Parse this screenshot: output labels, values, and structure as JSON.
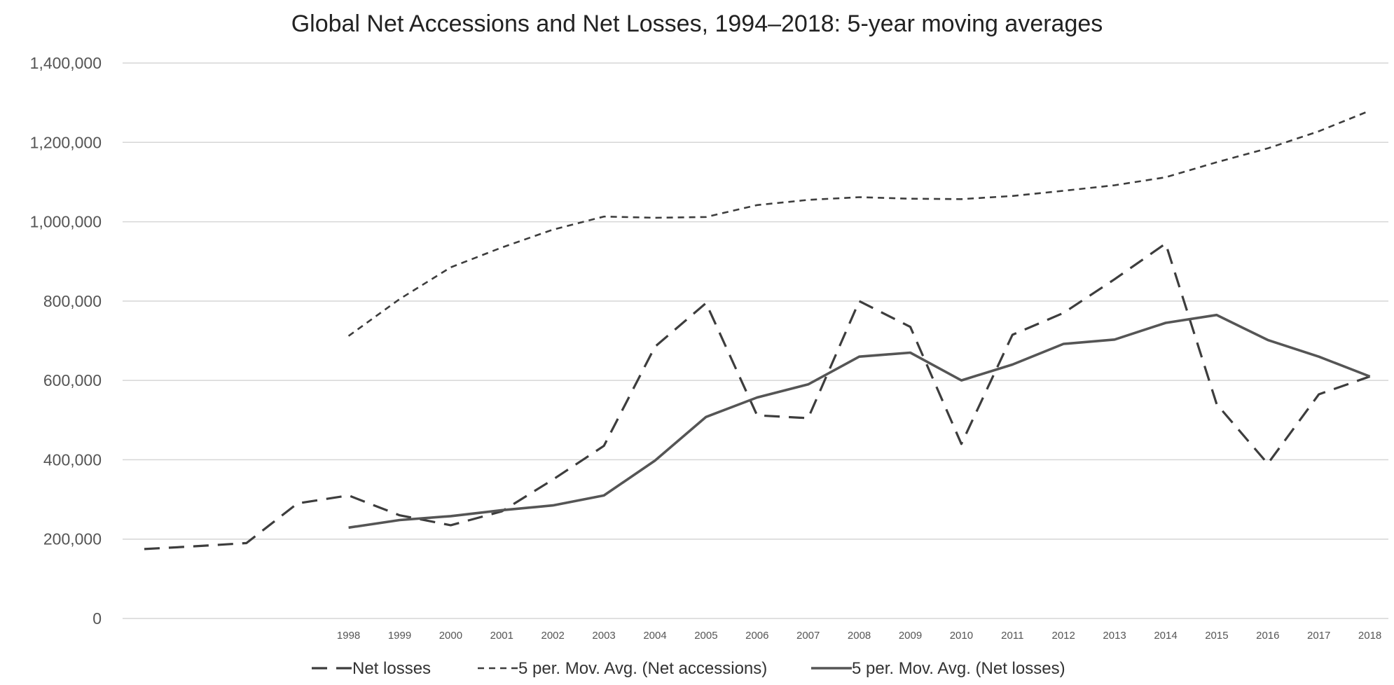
{
  "chart_data": {
    "type": "line",
    "title": "Global Net Accessions and Net Losses, 1994–2018: 5-year moving averages",
    "xlabel": "",
    "ylabel": "",
    "ylim": [
      0,
      1400000
    ],
    "y_ticks": [
      0,
      200000,
      400000,
      600000,
      800000,
      1000000,
      1200000,
      1400000
    ],
    "y_tick_labels": [
      "0",
      "200,000",
      "400,000",
      "600,000",
      "800,000",
      "1,000,000",
      "1,200,000",
      "1,400,000"
    ],
    "x": [
      1994,
      1995,
      1996,
      1997,
      1998,
      1999,
      2000,
      2001,
      2002,
      2003,
      2004,
      2005,
      2006,
      2007,
      2008,
      2009,
      2010,
      2011,
      2012,
      2013,
      2014,
      2015,
      2016,
      2017,
      2018
    ],
    "x_tick_labels": [
      "",
      "",
      "",
      "",
      "1998",
      "1999",
      "2000",
      "2001",
      "2002",
      "2003",
      "2004",
      "2005",
      "2006",
      "2007",
      "2008",
      "2009",
      "2010",
      "2011",
      "2012",
      "2013",
      "2014",
      "2015",
      "2016",
      "2017",
      "2018"
    ],
    "grid": true,
    "legend_position": "bottom",
    "series": [
      {
        "name": "Net losses",
        "style": "long-dash",
        "color": "#3d3d3d",
        "values": [
          175000,
          182000,
          190000,
          290000,
          310000,
          260000,
          235000,
          270000,
          350000,
          435000,
          685000,
          795000,
          512000,
          505000,
          800000,
          735000,
          440000,
          715000,
          770000,
          855000,
          945000,
          540000,
          390000,
          565000,
          610000
        ]
      },
      {
        "name": "5 per. Mov. Avg. (Net accessions)",
        "style": "short-dash",
        "color": "#3d3d3d",
        "values": [
          null,
          null,
          null,
          null,
          712000,
          805000,
          885000,
          935000,
          980000,
          1013000,
          1010000,
          1012000,
          1042000,
          1055000,
          1062000,
          1058000,
          1057000,
          1065000,
          1078000,
          1092000,
          1112000,
          1150000,
          1185000,
          1228000,
          1280000
        ]
      },
      {
        "name": "5 per. Mov. Avg. (Net losses)",
        "style": "solid",
        "color": "#555555",
        "values": [
          null,
          null,
          null,
          null,
          229000,
          248000,
          258000,
          273000,
          285000,
          310000,
          398000,
          508000,
          557000,
          590000,
          660000,
          670000,
          600000,
          640000,
          692000,
          703000,
          745000,
          765000,
          702000,
          660000,
          610000
        ]
      }
    ]
  }
}
